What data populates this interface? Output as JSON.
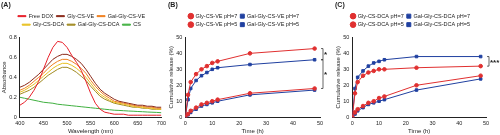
{
  "chart_data": [
    {
      "type": "line",
      "title": "(A)",
      "x_label": "Wavelength (nm)",
      "y_label": "Absorbance",
      "x": [
        400,
        410,
        420,
        430,
        440,
        450,
        460,
        470,
        480,
        490,
        500,
        510,
        520,
        530,
        540,
        550,
        560,
        570,
        580,
        590,
        600,
        610,
        620,
        630,
        640,
        650,
        660,
        670,
        680,
        690,
        700
      ],
      "series": [
        {
          "name": "Free DOX",
          "color": "#e8202a",
          "values": [
            0.12,
            0.15,
            0.2,
            0.27,
            0.36,
            0.48,
            0.6,
            0.7,
            0.76,
            0.75,
            0.7,
            0.62,
            0.55,
            0.47,
            0.36,
            0.24,
            0.14,
            0.08,
            0.05,
            0.04,
            0.03,
            0.03,
            0.03,
            0.02,
            0.02,
            0.02,
            0.02,
            0.02,
            0.02,
            0.02,
            0.02
          ]
        },
        {
          "name": "Gly-CS-VE",
          "color": "#8b2a1a",
          "values": [
            0.3,
            0.32,
            0.35,
            0.39,
            0.43,
            0.48,
            0.53,
            0.58,
            0.61,
            0.63,
            0.63,
            0.61,
            0.58,
            0.54,
            0.48,
            0.41,
            0.34,
            0.28,
            0.24,
            0.21,
            0.18,
            0.16,
            0.15,
            0.14,
            0.13,
            0.12,
            0.12,
            0.11,
            0.11,
            0.1,
            0.1
          ]
        },
        {
          "name": "Gal-Gly-CS-VE",
          "color": "#f08020",
          "values": [
            0.27,
            0.29,
            0.32,
            0.36,
            0.4,
            0.44,
            0.49,
            0.53,
            0.56,
            0.58,
            0.58,
            0.56,
            0.53,
            0.49,
            0.44,
            0.37,
            0.31,
            0.26,
            0.22,
            0.19,
            0.16,
            0.15,
            0.14,
            0.13,
            0.12,
            0.11,
            0.11,
            0.1,
            0.1,
            0.09,
            0.09
          ]
        },
        {
          "name": "Gly-CS-DCA",
          "color": "#e8c020",
          "values": [
            0.25,
            0.27,
            0.3,
            0.33,
            0.37,
            0.41,
            0.45,
            0.49,
            0.52,
            0.54,
            0.54,
            0.52,
            0.49,
            0.45,
            0.4,
            0.34,
            0.28,
            0.23,
            0.2,
            0.17,
            0.15,
            0.14,
            0.13,
            0.12,
            0.11,
            0.1,
            0.1,
            0.09,
            0.09,
            0.08,
            0.08
          ]
        },
        {
          "name": "Gal-Gly-CS-DCA",
          "color": "#a08a20",
          "values": [
            0.23,
            0.25,
            0.27,
            0.3,
            0.34,
            0.38,
            0.42,
            0.45,
            0.48,
            0.5,
            0.5,
            0.48,
            0.45,
            0.41,
            0.37,
            0.31,
            0.26,
            0.21,
            0.18,
            0.16,
            0.14,
            0.13,
            0.12,
            0.11,
            0.1,
            0.1,
            0.09,
            0.09,
            0.08,
            0.08,
            0.08
          ]
        },
        {
          "name": "CS",
          "color": "#40b040",
          "values": [
            0.2,
            0.19,
            0.18,
            0.17,
            0.16,
            0.15,
            0.145,
            0.14,
            0.13,
            0.125,
            0.12,
            0.115,
            0.11,
            0.105,
            0.1,
            0.095,
            0.09,
            0.085,
            0.08,
            0.075,
            0.07,
            0.068,
            0.065,
            0.062,
            0.06,
            0.057,
            0.055,
            0.052,
            0.05,
            0.048,
            0.045
          ]
        }
      ],
      "marker": "none",
      "xlim": [
        400,
        700
      ],
      "xticks": [
        400,
        450,
        500,
        550,
        600,
        650,
        700
      ],
      "ylim": [
        0,
        0.8
      ],
      "yticks": [
        0,
        0.2,
        0.4,
        0.6,
        0.8
      ],
      "grid": false,
      "legend": "top"
    },
    {
      "type": "line",
      "title": "(B)",
      "x_label": "Time (h)",
      "y_label": "Cumulative release (%)",
      "x": [
        0,
        1,
        2,
        4,
        6,
        8,
        10,
        12,
        24,
        48
      ],
      "series": [
        {
          "name": "Gly-CS-VE pH=7",
          "color": "#e03030",
          "marker": "circle",
          "values": [
            0,
            2,
            4,
            6,
            8,
            9,
            10,
            11,
            15,
            18
          ]
        },
        {
          "name": "Gal-Gly-CS-VE pH=7",
          "color": "#2040a0",
          "marker": "rect",
          "values": [
            0,
            1.5,
            3,
            5,
            7,
            8,
            9,
            10,
            14,
            17
          ]
        },
        {
          "name": "Gly-CS-VE pH=5",
          "color": "#e03030",
          "marker": "circle",
          "values": [
            0,
            14,
            22,
            27,
            30,
            32,
            34,
            35,
            40,
            43
          ]
        },
        {
          "name": "Gal-Gly-CS-VE pH=5",
          "color": "#2040a0",
          "marker": "rect",
          "values": [
            0,
            11,
            18,
            23,
            26,
            28,
            30,
            31,
            33,
            36
          ]
        }
      ],
      "annotations": [
        "*",
        "*"
      ],
      "xlim": [
        0,
        50
      ],
      "xticks": [
        0,
        10,
        20,
        30,
        40,
        50
      ],
      "ylim": [
        0,
        50
      ],
      "yticks": [
        0,
        10,
        20,
        30,
        40,
        50
      ],
      "grid": false,
      "legend": "top"
    },
    {
      "type": "line",
      "title": "(C)",
      "x_label": "Time (h)",
      "y_label": "Cumulative release (%)",
      "x": [
        0,
        1,
        2,
        4,
        6,
        8,
        10,
        12,
        24,
        48
      ],
      "series": [
        {
          "name": "Gly-CS-DCA pH=7",
          "color": "#e03030",
          "marker": "circle",
          "values": [
            0,
            3,
            5,
            7,
            9,
            10,
            12,
            13,
            20,
            26
          ]
        },
        {
          "name": "Gal-Gly-CS-DCA pH=7",
          "color": "#2040a0",
          "marker": "rect",
          "values": [
            0,
            2,
            4,
            6,
            8,
            9,
            10,
            11,
            17,
            24
          ]
        },
        {
          "name": "Gly-CS-DCA pH=5",
          "color": "#e03030",
          "marker": "circle",
          "values": [
            0,
            15,
            22,
            26,
            28,
            29,
            30,
            30,
            31,
            32
          ]
        },
        {
          "name": "Gal-Gly-CS-DCA pH=5",
          "color": "#2040a0",
          "marker": "rect",
          "values": [
            0,
            18,
            25,
            29,
            32,
            34,
            35,
            36,
            38,
            38
          ]
        }
      ],
      "annotations": [
        "***"
      ],
      "xlim": [
        0,
        50
      ],
      "xticks": [
        0,
        10,
        20,
        30,
        40,
        50
      ],
      "ylim": [
        0,
        50
      ],
      "yticks": [
        0,
        10,
        20,
        30,
        40,
        50
      ],
      "grid": false,
      "legend": "top"
    }
  ]
}
